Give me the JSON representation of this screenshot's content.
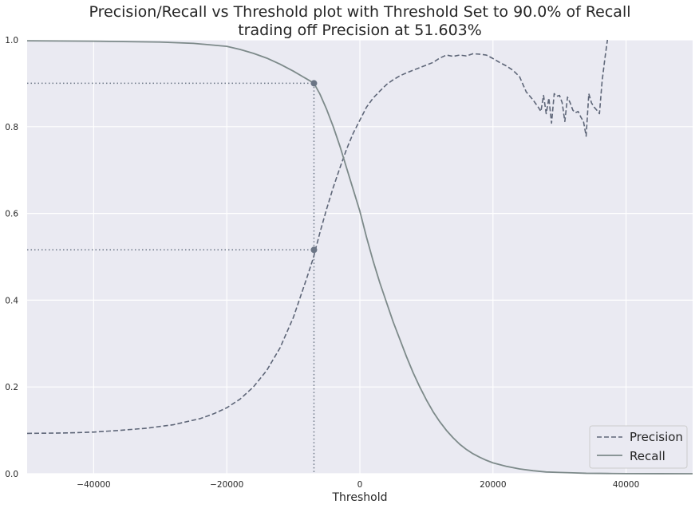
{
  "chart_data": {
    "type": "line",
    "title_line1": "Precision/Recall vs Threshold plot with Threshold Set to 90.0% of Recall",
    "title_line2": "trading off Precision at 51.603%",
    "xlabel": "Threshold",
    "ylabel": "",
    "xlim": [
      -50000,
      50000
    ],
    "ylim": [
      0.0,
      1.0
    ],
    "x_ticks": [
      -40000,
      -20000,
      0,
      20000,
      40000
    ],
    "x_tick_labels": [
      "−40000",
      "−20000",
      "0",
      "20000",
      "40000"
    ],
    "y_ticks": [
      0.0,
      0.2,
      0.4,
      0.6,
      0.8,
      1.0
    ],
    "y_tick_labels": [
      "0.0",
      "0.2",
      "0.4",
      "0.6",
      "0.8",
      "1.0"
    ],
    "grid": true,
    "legend_position": "lower-right",
    "threshold_marker": {
      "x": -6900,
      "recall": 0.9,
      "precision": 0.516
    },
    "series": [
      {
        "name": "Precision",
        "style": "dashed",
        "color": "#5e6678",
        "x": [
          -50000,
          -44000,
          -40000,
          -36000,
          -32000,
          -28000,
          -24000,
          -22000,
          -20000,
          -18000,
          -16000,
          -14000,
          -12000,
          -10000,
          -8000,
          -7000,
          -6000,
          -5000,
          -4000,
          -3000,
          -2000,
          -1000,
          0,
          1000,
          2000,
          3000,
          4000,
          5000,
          6000,
          7000,
          8000,
          9000,
          10000,
          11000,
          12000,
          13000,
          14000,
          15000,
          16000,
          17000,
          18000,
          19000,
          20000,
          21000,
          22000,
          23000,
          24000,
          25000,
          26000,
          26800,
          27200,
          27600,
          28000,
          28400,
          28800,
          29200,
          29600,
          30000,
          30400,
          30800,
          31200,
          31600,
          32000,
          32400,
          32800,
          33200,
          33600,
          34000,
          34400,
          34800,
          35200,
          35600,
          36000,
          36400,
          36800,
          37200
        ],
        "values": [
          0.093,
          0.094,
          0.096,
          0.1,
          0.105,
          0.113,
          0.127,
          0.138,
          0.152,
          0.172,
          0.2,
          0.238,
          0.29,
          0.36,
          0.45,
          0.497,
          0.556,
          0.61,
          0.66,
          0.705,
          0.748,
          0.785,
          0.815,
          0.845,
          0.866,
          0.882,
          0.897,
          0.908,
          0.917,
          0.924,
          0.93,
          0.936,
          0.942,
          0.948,
          0.958,
          0.965,
          0.962,
          0.965,
          0.963,
          0.968,
          0.967,
          0.965,
          0.957,
          0.948,
          0.94,
          0.93,
          0.915,
          0.88,
          0.862,
          0.845,
          0.835,
          0.872,
          0.83,
          0.866,
          0.808,
          0.876,
          0.87,
          0.872,
          0.855,
          0.812,
          0.868,
          0.855,
          0.838,
          0.832,
          0.835,
          0.822,
          0.812,
          0.778,
          0.876,
          0.855,
          0.845,
          0.838,
          0.83,
          0.905,
          0.955,
          1.0
        ]
      },
      {
        "name": "Recall",
        "style": "solid",
        "color": "#7d8a8a",
        "x": [
          -50000,
          -40000,
          -30000,
          -25000,
          -20000,
          -18000,
          -16000,
          -14000,
          -12000,
          -10000,
          -8000,
          -6900,
          -6000,
          -5000,
          -4000,
          -3000,
          -2000,
          -1000,
          0,
          1000,
          2000,
          3000,
          4000,
          5000,
          6000,
          7000,
          8000,
          9000,
          10000,
          11000,
          12000,
          13000,
          14000,
          15000,
          16000,
          17000,
          18000,
          19000,
          20000,
          22000,
          24000,
          26000,
          28000,
          30000,
          32000,
          34000,
          36000,
          38000,
          40000,
          45000,
          50000
        ],
        "values": [
          0.998,
          0.997,
          0.995,
          0.992,
          0.985,
          0.978,
          0.969,
          0.958,
          0.944,
          0.928,
          0.91,
          0.9,
          0.875,
          0.84,
          0.8,
          0.755,
          0.705,
          0.655,
          0.605,
          0.545,
          0.49,
          0.44,
          0.395,
          0.35,
          0.31,
          0.27,
          0.233,
          0.2,
          0.17,
          0.143,
          0.12,
          0.1,
          0.083,
          0.068,
          0.056,
          0.046,
          0.038,
          0.031,
          0.025,
          0.017,
          0.011,
          0.007,
          0.004,
          0.003,
          0.002,
          0.001,
          0.0008,
          0.0005,
          0.0003,
          0.0001,
          0.0
        ]
      }
    ]
  }
}
